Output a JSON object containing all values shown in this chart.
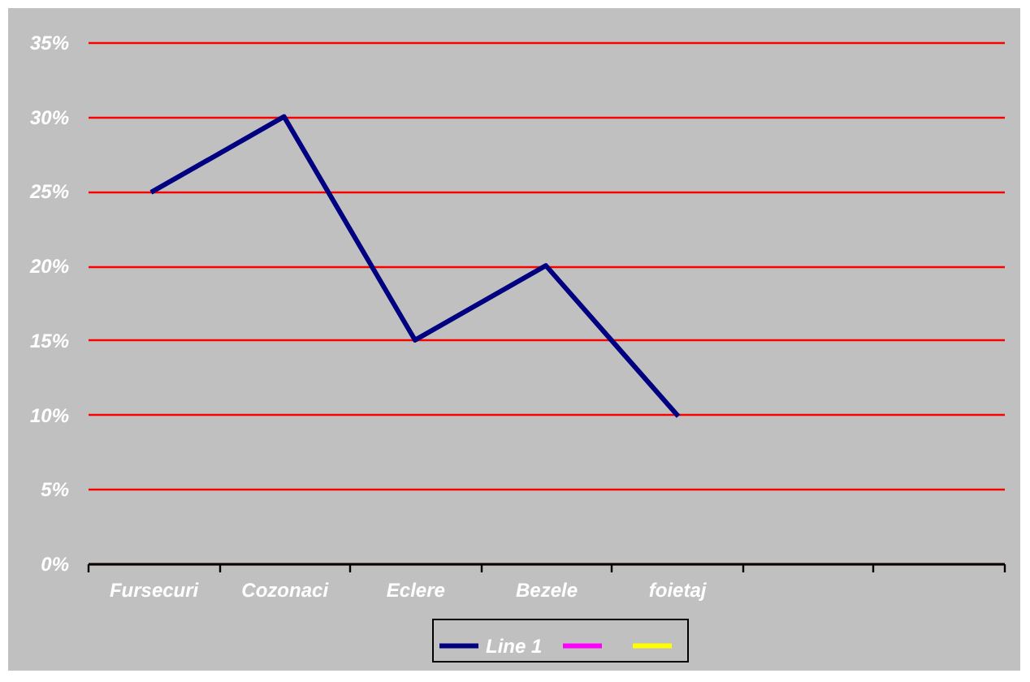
{
  "chart_data": {
    "type": "line",
    "categories": [
      "Fursecuri",
      "Cozonaci",
      "Eclere",
      "Bezele",
      "foietaj",
      null,
      null
    ],
    "series": [
      {
        "name": "Line 1",
        "color": "#000080",
        "values": [
          25,
          30,
          15,
          20,
          10,
          null,
          null
        ]
      },
      {
        "color": "#ff00ff",
        "values": [
          null,
          null,
          null,
          null,
          null,
          null,
          null
        ]
      },
      {
        "color": "#ffff00",
        "values": [
          null,
          null,
          null,
          null,
          null,
          null,
          null
        ]
      }
    ],
    "ylim": [
      0,
      35
    ],
    "yticks": [
      {
        "value": 0,
        "label": "0%"
      },
      {
        "value": 5,
        "label": "5%"
      },
      {
        "value": 10,
        "label": "10%"
      },
      {
        "value": 15,
        "label": "15%"
      },
      {
        "value": 20,
        "label": "20%"
      },
      {
        "value": 25,
        "label": "25%"
      },
      {
        "value": 30,
        "label": "30%"
      },
      {
        "value": 35,
        "label": "35%"
      }
    ],
    "grid": "y",
    "legend": "bottom"
  }
}
